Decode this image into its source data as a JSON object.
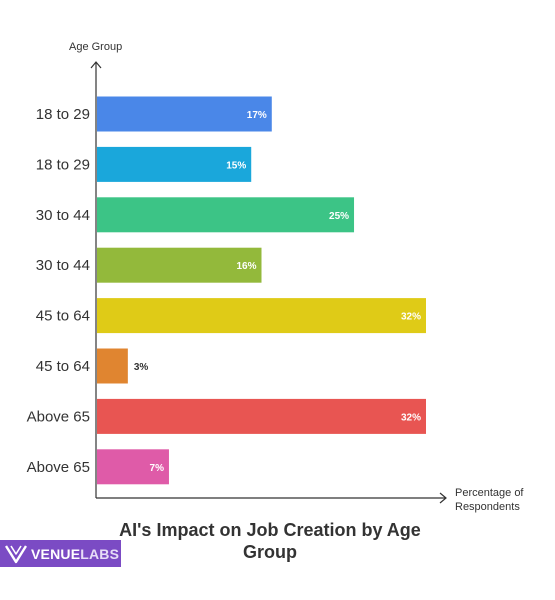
{
  "chart_data": {
    "type": "bar",
    "orientation": "horizontal",
    "title": "AI's Impact on Job Creation by Age Group",
    "title_lines": [
      "AI's Impact on Job Creation by Age",
      "Group"
    ],
    "ylabel": "Age Group",
    "xlabel_lines": [
      "Percentage of",
      "Respondents"
    ],
    "xlim": [
      0,
      32
    ],
    "grid": false,
    "categories": [
      "18 to 29",
      "18 to 29",
      "30 to 44",
      "30 to 44",
      "45 to 64",
      "45 to 64",
      "Above 65",
      "Above 65"
    ],
    "values": [
      17,
      15,
      25,
      16,
      32,
      3,
      32,
      7
    ],
    "value_labels": [
      "17%",
      "15%",
      "25%",
      "16%",
      "32%",
      "3%",
      "32%",
      "7%"
    ],
    "colors": [
      "#4a87e8",
      "#1aa7db",
      "#3cc486",
      "#93b93b",
      "#dfcb17",
      "#e08530",
      "#e85552",
      "#df5ba8"
    ]
  },
  "logo": {
    "name": "VENUELABS",
    "mark": "v-logo-icon"
  }
}
